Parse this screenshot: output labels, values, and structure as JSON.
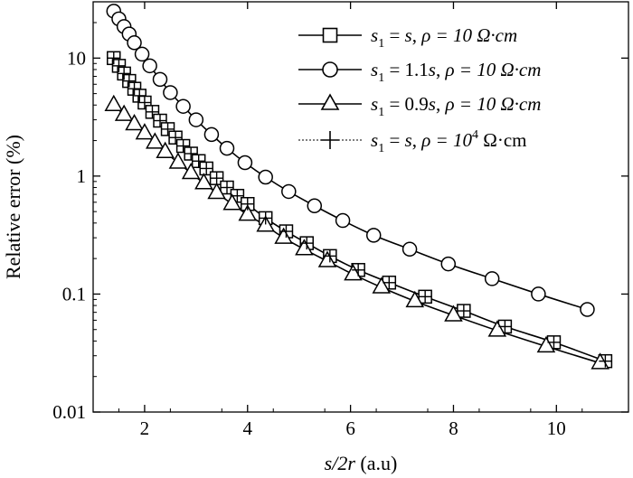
{
  "chart_data": {
    "type": "line",
    "title": "",
    "xlabel": {
      "var": "s/2r",
      "unit": " (a.u)"
    },
    "ylabel": "Relative error (%)",
    "xlim": [
      1.0,
      11.4
    ],
    "ylim": [
      0.01,
      30
    ],
    "yscale": "log",
    "grid": false,
    "legend_position": "top-right",
    "x_ticks": [
      2,
      4,
      6,
      8,
      10
    ],
    "x_tick_labels": [
      "2",
      "4",
      "6",
      "8",
      "10"
    ],
    "y_ticks": [
      0.01,
      0.1,
      1,
      10
    ],
    "y_tick_labels": [
      "0.01",
      "0.1",
      "1",
      "10"
    ],
    "series": [
      {
        "name": "s1 = s, ρ = 10 Ω·cm",
        "label_parts": {
          "sub": "1",
          "mid": " = ",
          "rhs": "s",
          "rho": "ρ = 10 Ω·cm"
        },
        "marker": "square",
        "x": [
          1.4,
          1.5,
          1.6,
          1.7,
          1.8,
          1.9,
          2.0,
          2.15,
          2.3,
          2.45,
          2.6,
          2.75,
          2.9,
          3.05,
          3.2,
          3.4,
          3.6,
          3.8,
          4.0,
          4.35,
          4.75,
          5.15,
          5.6,
          6.15,
          6.75,
          7.45,
          8.2,
          9.0,
          9.95,
          10.95
        ],
        "y": [
          10.0,
          8.6,
          7.4,
          6.4,
          5.5,
          4.8,
          4.2,
          3.5,
          2.95,
          2.5,
          2.12,
          1.8,
          1.55,
          1.34,
          1.16,
          0.96,
          0.8,
          0.68,
          0.58,
          0.44,
          0.34,
          0.27,
          0.21,
          0.16,
          0.125,
          0.095,
          0.072,
          0.053,
          0.039,
          0.027
        ]
      },
      {
        "name": "s1 = 1.1s, ρ = 10 Ω·cm",
        "label_parts": {
          "sub": "1",
          "mid": " = 1.1",
          "rhs": "s",
          "rho": "ρ = 10 Ω·cm"
        },
        "marker": "circle",
        "x": [
          1.4,
          1.5,
          1.6,
          1.7,
          1.8,
          1.95,
          2.1,
          2.3,
          2.5,
          2.75,
          3.0,
          3.3,
          3.6,
          3.95,
          4.35,
          4.8,
          5.3,
          5.85,
          6.45,
          7.15,
          7.9,
          8.75,
          9.65,
          10.6
        ],
        "y": [
          25.0,
          21.5,
          18.5,
          16.0,
          13.5,
          10.8,
          8.6,
          6.6,
          5.1,
          3.9,
          3.0,
          2.25,
          1.72,
          1.3,
          0.98,
          0.74,
          0.56,
          0.42,
          0.315,
          0.24,
          0.18,
          0.135,
          0.1,
          0.074
        ]
      },
      {
        "name": "s1 = 0.9s, ρ = 10 Ω·cm",
        "label_parts": {
          "sub": "1",
          "mid": " = 0.9",
          "rhs": "s",
          "rho": "ρ = 10 Ω·cm"
        },
        "marker": "triangle",
        "x": [
          1.4,
          1.6,
          1.8,
          2.0,
          2.2,
          2.4,
          2.65,
          2.9,
          3.15,
          3.4,
          3.7,
          4.0,
          4.35,
          4.7,
          5.1,
          5.55,
          6.05,
          6.6,
          7.25,
          8.0,
          8.85,
          9.8,
          10.85
        ],
        "y": [
          4.0,
          3.3,
          2.75,
          2.3,
          1.92,
          1.6,
          1.3,
          1.06,
          0.87,
          0.72,
          0.58,
          0.47,
          0.38,
          0.3,
          0.24,
          0.19,
          0.147,
          0.114,
          0.087,
          0.066,
          0.049,
          0.036,
          0.026
        ]
      },
      {
        "name": "s1 = s, ρ = 10⁴ Ω·cm",
        "label_parts": {
          "sub": "1",
          "mid": " = ",
          "rhs": "s",
          "rho_a": "ρ = 10",
          "rho_sup": "4",
          "rho_b": " Ω·cm"
        },
        "marker": "plus",
        "dashed": true,
        "x": [
          1.4,
          1.5,
          1.6,
          1.7,
          1.8,
          1.9,
          2.0,
          2.15,
          2.3,
          2.45,
          2.6,
          2.75,
          2.9,
          3.05,
          3.2,
          3.4,
          3.6,
          3.8,
          4.0,
          4.35,
          4.75,
          5.15,
          5.6,
          6.15,
          6.75,
          7.45,
          8.2,
          9.0,
          9.95,
          10.95
        ],
        "y": [
          10.0,
          8.6,
          7.4,
          6.4,
          5.5,
          4.8,
          4.2,
          3.5,
          2.95,
          2.5,
          2.12,
          1.8,
          1.55,
          1.34,
          1.16,
          0.96,
          0.8,
          0.68,
          0.58,
          0.44,
          0.34,
          0.27,
          0.21,
          0.16,
          0.125,
          0.095,
          0.072,
          0.053,
          0.039,
          0.027
        ]
      }
    ]
  }
}
